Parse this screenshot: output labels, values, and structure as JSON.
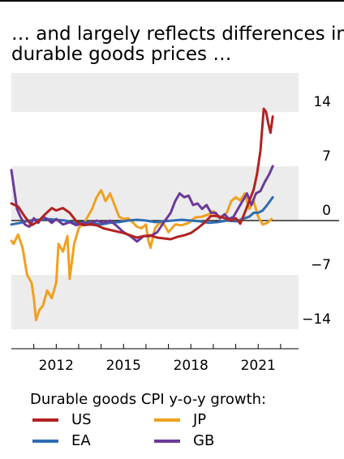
{
  "chart_data": {
    "type": "line",
    "title": "… and largely reflects differences in durable goods prices …",
    "title_lines": [
      "… and largely reflects differences in",
      "durable goods prices …"
    ],
    "legend_title": "Durable goods CPI y-o-y growth:",
    "xlim": [
      2010.0,
      2022.8
    ],
    "ylim": [
      -16.5,
      19.0
    ],
    "x_ticks": [
      2012,
      2015,
      2018,
      2021
    ],
    "y_ticks": [
      14,
      7,
      0,
      -7,
      -14
    ],
    "y_tick_labels": [
      "14",
      "7",
      "0",
      "−7",
      "−14"
    ],
    "grid": "shaded bands between y ticks",
    "series": [
      {
        "name": "US",
        "color": "#B22222",
        "points": [
          [
            2010.0,
            2.2
          ],
          [
            2010.3,
            1.8
          ],
          [
            2010.6,
            0.5
          ],
          [
            2010.9,
            -0.6
          ],
          [
            2011.2,
            -0.1
          ],
          [
            2011.5,
            0.8
          ],
          [
            2011.8,
            1.6
          ],
          [
            2012.0,
            1.3
          ],
          [
            2012.3,
            1.6
          ],
          [
            2012.6,
            1.0
          ],
          [
            2012.9,
            -0.1
          ],
          [
            2013.2,
            -0.6
          ],
          [
            2013.5,
            -0.5
          ],
          [
            2013.8,
            -0.6
          ],
          [
            2014.1,
            -1.0
          ],
          [
            2014.4,
            -1.2
          ],
          [
            2014.7,
            -1.4
          ],
          [
            2015.0,
            -1.6
          ],
          [
            2015.3,
            -1.9
          ],
          [
            2015.6,
            -2.2
          ],
          [
            2015.9,
            -2.0
          ],
          [
            2016.2,
            -1.9
          ],
          [
            2016.5,
            -2.2
          ],
          [
            2016.8,
            -2.3
          ],
          [
            2017.1,
            -2.4
          ],
          [
            2017.4,
            -2.1
          ],
          [
            2017.7,
            -1.9
          ],
          [
            2018.0,
            -1.6
          ],
          [
            2018.3,
            -1.0
          ],
          [
            2018.6,
            -0.3
          ],
          [
            2018.9,
            0.6
          ],
          [
            2019.2,
            0.6
          ],
          [
            2019.5,
            0.3
          ],
          [
            2019.8,
            0.0
          ],
          [
            2020.0,
            0.3
          ],
          [
            2020.2,
            -0.4
          ],
          [
            2020.4,
            1.0
          ],
          [
            2020.6,
            2.5
          ],
          [
            2020.8,
            4.0
          ],
          [
            2020.95,
            6.0
          ],
          [
            2021.1,
            9.0
          ],
          [
            2021.25,
            14.4
          ],
          [
            2021.35,
            14.0
          ],
          [
            2021.45,
            12.5
          ],
          [
            2021.55,
            11.3
          ],
          [
            2021.65,
            13.4
          ]
        ]
      },
      {
        "name": "JP",
        "color": "#F0A020",
        "points": [
          [
            2010.0,
            -2.6
          ],
          [
            2010.1,
            -3.0
          ],
          [
            2010.3,
            -1.8
          ],
          [
            2010.5,
            -3.5
          ],
          [
            2010.7,
            -7.0
          ],
          [
            2010.9,
            -8.0
          ],
          [
            2011.0,
            -10.0
          ],
          [
            2011.1,
            -12.8
          ],
          [
            2011.25,
            -11.5
          ],
          [
            2011.4,
            -11.0
          ],
          [
            2011.6,
            -9.0
          ],
          [
            2011.8,
            -10.0
          ],
          [
            2012.0,
            -8.0
          ],
          [
            2012.1,
            -3.0
          ],
          [
            2012.3,
            -4.0
          ],
          [
            2012.5,
            -2.0
          ],
          [
            2012.6,
            -7.5
          ],
          [
            2012.8,
            -3.0
          ],
          [
            2013.0,
            -1.0
          ],
          [
            2013.3,
            0.0
          ],
          [
            2013.6,
            1.5
          ],
          [
            2013.8,
            3.0
          ],
          [
            2014.0,
            3.9
          ],
          [
            2014.2,
            2.5
          ],
          [
            2014.4,
            3.5
          ],
          [
            2014.6,
            2.0
          ],
          [
            2014.8,
            0.5
          ],
          [
            2015.0,
            0.2
          ],
          [
            2015.2,
            0.3
          ],
          [
            2015.4,
            -0.2
          ],
          [
            2015.6,
            -0.8
          ],
          [
            2015.8,
            -1.0
          ],
          [
            2016.0,
            -0.5
          ],
          [
            2016.1,
            -2.5
          ],
          [
            2016.2,
            -3.5
          ],
          [
            2016.4,
            -1.0
          ],
          [
            2016.6,
            -0.3
          ],
          [
            2016.8,
            -0.5
          ],
          [
            2017.0,
            -1.5
          ],
          [
            2017.3,
            -0.5
          ],
          [
            2017.6,
            -0.6
          ],
          [
            2017.9,
            -0.3
          ],
          [
            2018.2,
            0.4
          ],
          [
            2018.5,
            0.5
          ],
          [
            2018.8,
            0.8
          ],
          [
            2019.0,
            1.2
          ],
          [
            2019.2,
            0.4
          ],
          [
            2019.4,
            0.5
          ],
          [
            2019.6,
            1.0
          ],
          [
            2019.8,
            2.5
          ],
          [
            2020.0,
            3.0
          ],
          [
            2020.2,
            2.6
          ],
          [
            2020.4,
            3.5
          ],
          [
            2020.6,
            1.5
          ],
          [
            2020.8,
            2.5
          ],
          [
            2021.0,
            0.5
          ],
          [
            2021.2,
            -0.5
          ],
          [
            2021.4,
            -0.3
          ],
          [
            2021.6,
            0.2
          ]
        ]
      },
      {
        "name": "EA",
        "color": "#2E6DB4",
        "points": [
          [
            2010.0,
            -0.5
          ],
          [
            2010.4,
            -0.3
          ],
          [
            2010.8,
            0.0
          ],
          [
            2011.2,
            0.1
          ],
          [
            2011.6,
            0.2
          ],
          [
            2012.0,
            0.1
          ],
          [
            2012.4,
            0.0
          ],
          [
            2012.8,
            -0.3
          ],
          [
            2013.2,
            -0.2
          ],
          [
            2013.6,
            -0.3
          ],
          [
            2014.0,
            -0.5
          ],
          [
            2014.4,
            -0.3
          ],
          [
            2014.8,
            -0.2
          ],
          [
            2015.2,
            0.0
          ],
          [
            2015.6,
            0.1
          ],
          [
            2016.0,
            0.0
          ],
          [
            2016.4,
            -0.2
          ],
          [
            2016.8,
            -0.1
          ],
          [
            2017.2,
            0.0
          ],
          [
            2017.6,
            0.1
          ],
          [
            2018.0,
            0.0
          ],
          [
            2018.4,
            -0.1
          ],
          [
            2018.8,
            -0.3
          ],
          [
            2019.2,
            -0.2
          ],
          [
            2019.6,
            0.0
          ],
          [
            2020.0,
            -0.1
          ],
          [
            2020.3,
            0.2
          ],
          [
            2020.6,
            0.5
          ],
          [
            2020.8,
            1.0
          ],
          [
            2021.0,
            1.0
          ],
          [
            2021.2,
            1.3
          ],
          [
            2021.4,
            2.0
          ],
          [
            2021.65,
            3.0
          ]
        ]
      },
      {
        "name": "GB",
        "color": "#6B3A99",
        "points": [
          [
            2010.0,
            6.5
          ],
          [
            2010.1,
            4.5
          ],
          [
            2010.25,
            1.5
          ],
          [
            2010.4,
            0.5
          ],
          [
            2010.6,
            -0.5
          ],
          [
            2010.8,
            -0.8
          ],
          [
            2011.0,
            0.3
          ],
          [
            2011.2,
            -0.3
          ],
          [
            2011.4,
            0.5
          ],
          [
            2011.6,
            0.2
          ],
          [
            2011.8,
            -0.3
          ],
          [
            2012.0,
            0.2
          ],
          [
            2012.3,
            -0.5
          ],
          [
            2012.6,
            -0.2
          ],
          [
            2012.9,
            -0.6
          ],
          [
            2013.2,
            -0.3
          ],
          [
            2013.5,
            -0.4
          ],
          [
            2013.8,
            0.0
          ],
          [
            2014.1,
            -0.3
          ],
          [
            2014.4,
            0.0
          ],
          [
            2014.7,
            -0.7
          ],
          [
            2015.0,
            -1.5
          ],
          [
            2015.3,
            -2.0
          ],
          [
            2015.6,
            -2.7
          ],
          [
            2015.9,
            -2.0
          ],
          [
            2016.2,
            -2.0
          ],
          [
            2016.5,
            -1.5
          ],
          [
            2016.8,
            -0.2
          ],
          [
            2017.1,
            1.0
          ],
          [
            2017.3,
            2.5
          ],
          [
            2017.5,
            3.5
          ],
          [
            2017.7,
            3.0
          ],
          [
            2017.9,
            3.2
          ],
          [
            2018.1,
            2.0
          ],
          [
            2018.3,
            2.2
          ],
          [
            2018.5,
            1.5
          ],
          [
            2018.7,
            2.0
          ],
          [
            2018.9,
            1.0
          ],
          [
            2019.1,
            1.0
          ],
          [
            2019.3,
            0.3
          ],
          [
            2019.5,
            0.8
          ],
          [
            2019.7,
            0.2
          ],
          [
            2019.9,
            0.5
          ],
          [
            2020.1,
            1.5
          ],
          [
            2020.3,
            2.5
          ],
          [
            2020.5,
            3.5
          ],
          [
            2020.7,
            2.0
          ],
          [
            2020.9,
            3.5
          ],
          [
            2021.1,
            3.8
          ],
          [
            2021.3,
            5.0
          ],
          [
            2021.5,
            6.0
          ],
          [
            2021.65,
            7.0
          ]
        ]
      }
    ]
  }
}
